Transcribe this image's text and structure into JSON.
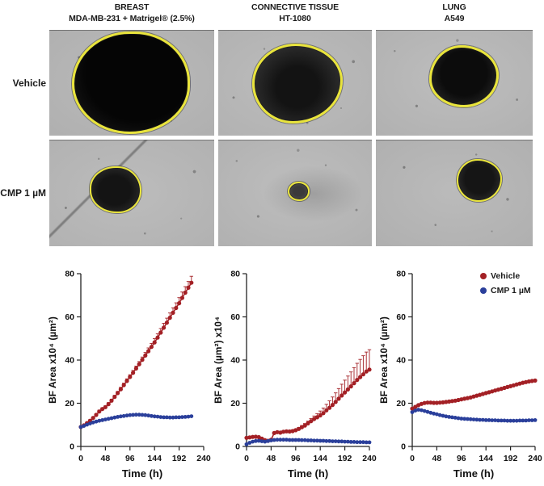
{
  "figure": {
    "columns": [
      {
        "tissue": "BREAST",
        "cell_line": "MDA-MB-231 + Matrigel® (2.5%)"
      },
      {
        "tissue": "CONNECTIVE TISSUE",
        "cell_line": "HT-1080"
      },
      {
        "tissue": "LUNG",
        "cell_line": "A549"
      }
    ],
    "rows": [
      {
        "label": "Vehicle"
      },
      {
        "label": "CMP 1 µM"
      }
    ],
    "panels": [
      {
        "id": "breast-vehicle",
        "condition": "Vehicle",
        "cell_line": "MDA-MB-231",
        "spheroid_outline": "yellow",
        "spheroid_size": "very large"
      },
      {
        "id": "ht1080-vehicle",
        "condition": "Vehicle",
        "cell_line": "HT-1080",
        "spheroid_outline": "yellow",
        "spheroid_size": "large"
      },
      {
        "id": "a549-vehicle",
        "condition": "Vehicle",
        "cell_line": "A549",
        "spheroid_outline": "yellow",
        "spheroid_size": "medium"
      },
      {
        "id": "breast-cmp",
        "condition": "CMP 1 µM",
        "cell_line": "MDA-MB-231",
        "spheroid_outline": "yellow",
        "spheroid_size": "small",
        "artifact": "diagonal scratch"
      },
      {
        "id": "ht1080-cmp",
        "condition": "CMP 1 µM",
        "cell_line": "HT-1080",
        "spheroid_outline": "yellow",
        "spheroid_size": "very small"
      },
      {
        "id": "a549-cmp",
        "condition": "CMP 1 µM",
        "cell_line": "A549",
        "spheroid_outline": "yellow",
        "spheroid_size": "small-medium"
      }
    ]
  },
  "legend": {
    "items": [
      {
        "label": "Vehicle",
        "color": "#a32025"
      },
      {
        "label": "CMP 1 µM",
        "color": "#2a3f9b"
      }
    ],
    "position": "top-right of third chart"
  },
  "colors": {
    "vehicle": "#a32025",
    "cmp": "#2a3f9b",
    "spheroid_outline": "#e9e43c",
    "axis": "#222222"
  },
  "chart_data": [
    {
      "type": "line",
      "title": "MDA-MB-231 + Matrigel (2.5%) spheroid growth",
      "xlabel": "Time (h)",
      "ylabel": "BF Area x10⁴ (µm²)",
      "xlim": [
        0,
        240
      ],
      "ylim": [
        0,
        80
      ],
      "xticks": [
        0,
        48,
        96,
        144,
        192,
        240
      ],
      "yticks": [
        0,
        20,
        40,
        60,
        80
      ],
      "grid": false,
      "x": [
        0,
        6,
        12,
        18,
        24,
        30,
        36,
        42,
        48,
        54,
        60,
        66,
        72,
        78,
        84,
        90,
        96,
        102,
        108,
        114,
        120,
        126,
        132,
        138,
        144,
        150,
        156,
        162,
        168,
        174,
        180,
        186,
        192,
        198,
        204,
        210,
        216
      ],
      "series": [
        {
          "name": "Vehicle",
          "color": "#a32025",
          "values": [
            9.0,
            9.8,
            10.8,
            11.9,
            13.2,
            14.6,
            16.2,
            17.3,
            18.2,
            19.6,
            21.2,
            22.9,
            24.7,
            26.5,
            28.4,
            30.3,
            32.2,
            34.1,
            36.1,
            38.1,
            40.1,
            42.1,
            44.1,
            46.1,
            48.2,
            50.4,
            52.7,
            55.0,
            57.3,
            59.6,
            61.9,
            64.1,
            66.3,
            68.8,
            71.2,
            73.5,
            75.8
          ],
          "errors": [
            0.4,
            0.4,
            0.4,
            0.5,
            0.5,
            0.5,
            0.6,
            0.6,
            0.6,
            0.7,
            0.7,
            0.8,
            0.8,
            0.9,
            0.9,
            1.0,
            1.0,
            1.1,
            1.1,
            1.2,
            1.3,
            1.4,
            1.5,
            1.6,
            1.7,
            1.8,
            1.9,
            2.0,
            2.1,
            2.2,
            2.3,
            2.4,
            2.6,
            2.7,
            2.8,
            2.9,
            3.0
          ]
        },
        {
          "name": "CMP 1 µM",
          "color": "#2a3f9b",
          "values": [
            9.0,
            9.5,
            10.1,
            10.6,
            11.1,
            11.5,
            11.9,
            12.2,
            12.5,
            12.8,
            13.1,
            13.4,
            13.7,
            13.9,
            14.1,
            14.3,
            14.5,
            14.6,
            14.7,
            14.7,
            14.6,
            14.5,
            14.3,
            14.1,
            13.9,
            13.8,
            13.6,
            13.5,
            13.5,
            13.4,
            13.4,
            13.5,
            13.5,
            13.6,
            13.7,
            13.8,
            14.0
          ],
          "errors": 0.3
        }
      ]
    },
    {
      "type": "line",
      "title": "HT-1080 spheroid growth",
      "xlabel": "Time (h)",
      "ylabel": "BF Area (µm²) x10⁴",
      "xlim": [
        0,
        240
      ],
      "ylim": [
        0,
        80
      ],
      "xticks": [
        0,
        48,
        96,
        144,
        192,
        240
      ],
      "yticks": [
        0,
        20,
        40,
        60,
        80
      ],
      "grid": false,
      "x": [
        0,
        6,
        12,
        18,
        24,
        30,
        36,
        42,
        48,
        54,
        60,
        66,
        72,
        78,
        84,
        90,
        96,
        102,
        108,
        114,
        120,
        126,
        132,
        138,
        144,
        150,
        156,
        162,
        168,
        174,
        180,
        186,
        192,
        198,
        204,
        210,
        216,
        222,
        228,
        234,
        240
      ],
      "series": [
        {
          "name": "Vehicle",
          "color": "#a32025",
          "values": [
            4.0,
            4.2,
            4.4,
            4.5,
            4.3,
            3.6,
            2.9,
            2.6,
            3.1,
            6.2,
            6.6,
            6.4,
            6.8,
            7.0,
            6.9,
            7.1,
            7.5,
            8.1,
            8.9,
            9.7,
            10.7,
            11.7,
            12.7,
            13.5,
            14.4,
            15.4,
            16.7,
            17.9,
            19.2,
            20.6,
            22.1,
            23.6,
            25.0,
            26.4,
            27.8,
            29.3,
            30.8,
            32.1,
            33.4,
            34.7,
            35.6
          ],
          "errors": [
            0.3,
            0.3,
            0.3,
            0.3,
            0.3,
            0.3,
            0.3,
            0.3,
            0.3,
            0.4,
            0.4,
            0.4,
            0.5,
            0.5,
            0.5,
            0.6,
            0.6,
            0.7,
            0.8,
            0.9,
            1.0,
            1.2,
            1.4,
            1.7,
            2.0,
            2.4,
            2.8,
            3.2,
            3.7,
            4.2,
            4.7,
            5.2,
            5.7,
            6.2,
            6.7,
            7.2,
            7.7,
            8.2,
            8.6,
            9.0,
            9.2
          ]
        },
        {
          "name": "CMP 1 µM",
          "color": "#2a3f9b",
          "values": [
            1.0,
            1.7,
            2.2,
            2.5,
            2.6,
            2.4,
            2.2,
            2.5,
            2.8,
            3.0,
            3.1,
            3.1,
            3.1,
            3.1,
            3.0,
            3.0,
            3.0,
            3.0,
            2.9,
            2.9,
            2.8,
            2.8,
            2.7,
            2.7,
            2.6,
            2.6,
            2.5,
            2.5,
            2.4,
            2.4,
            2.3,
            2.3,
            2.2,
            2.2,
            2.1,
            2.1,
            2.0,
            2.0,
            2.0,
            1.9,
            1.9
          ],
          "errors": 0.3
        }
      ]
    },
    {
      "type": "line",
      "title": "A549 spheroid growth",
      "xlabel": "Time (h)",
      "ylabel": "BF Area x10⁴ (µm²)",
      "xlim": [
        0,
        240
      ],
      "ylim": [
        0,
        80
      ],
      "xticks": [
        0,
        48,
        96,
        144,
        192,
        240
      ],
      "yticks": [
        0,
        20,
        40,
        60,
        80
      ],
      "grid": false,
      "x": [
        0,
        6,
        12,
        18,
        24,
        30,
        36,
        42,
        48,
        54,
        60,
        66,
        72,
        78,
        84,
        90,
        96,
        102,
        108,
        114,
        120,
        126,
        132,
        138,
        144,
        150,
        156,
        162,
        168,
        174,
        180,
        186,
        192,
        198,
        204,
        210,
        216,
        222,
        228,
        234,
        240
      ],
      "series": [
        {
          "name": "Vehicle",
          "color": "#a32025",
          "values": [
            17.5,
            18.3,
            19.1,
            19.7,
            20.1,
            20.3,
            20.3,
            20.2,
            20.2,
            20.3,
            20.4,
            20.6,
            20.8,
            21.0,
            21.2,
            21.5,
            21.8,
            22.1,
            22.4,
            22.7,
            23.1,
            23.5,
            23.9,
            24.3,
            24.7,
            25.1,
            25.5,
            25.9,
            26.3,
            26.7,
            27.1,
            27.5,
            27.9,
            28.3,
            28.7,
            29.1,
            29.5,
            29.8,
            30.1,
            30.3,
            30.5
          ],
          "errors": 0.4
        },
        {
          "name": "CMP 1 µM",
          "color": "#2a3f9b",
          "values": [
            15.9,
            16.6,
            17.0,
            16.8,
            16.4,
            16.0,
            15.6,
            15.2,
            14.9,
            14.5,
            14.2,
            13.9,
            13.7,
            13.5,
            13.3,
            13.1,
            12.9,
            12.8,
            12.7,
            12.6,
            12.5,
            12.4,
            12.3,
            12.3,
            12.2,
            12.2,
            12.1,
            12.1,
            12.0,
            12.0,
            12.0,
            11.9,
            11.9,
            11.9,
            11.9,
            12.0,
            12.0,
            12.0,
            12.1,
            12.1,
            12.2
          ],
          "errors": 0.3
        }
      ]
    }
  ]
}
